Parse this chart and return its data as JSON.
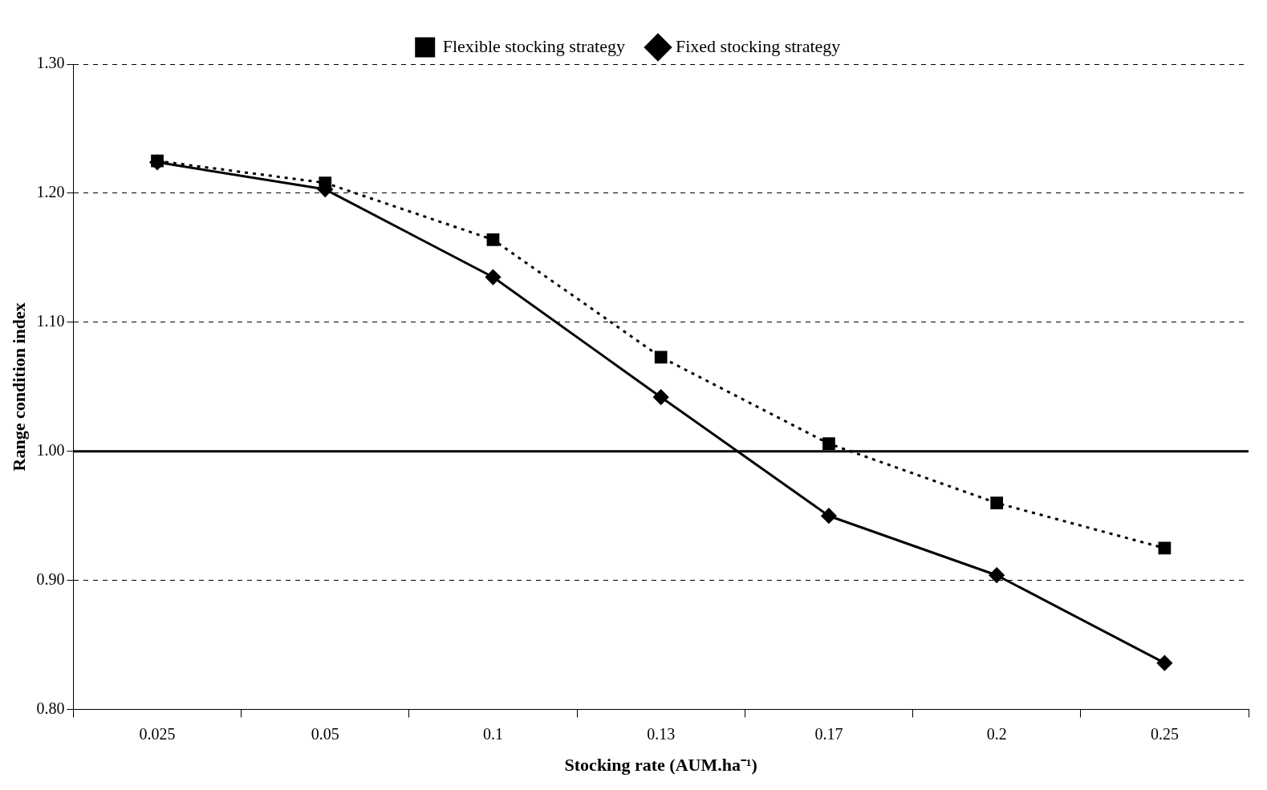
{
  "chart_data": {
    "type": "line",
    "xlabel": "Stocking rate (AUM.ha⁻¹)",
    "ylabel": "Range condition index",
    "categories": [
      "0.025",
      "0.05",
      "0.1",
      "0.13",
      "0.17",
      "0.2",
      "0.25"
    ],
    "series": [
      {
        "name": "Fixed stocking strategy",
        "color": "#000000",
        "marker": "diamond",
        "line_style": "solid",
        "values": [
          1.224,
          1.203,
          1.135,
          1.042,
          0.95,
          0.904,
          0.836
        ]
      },
      {
        "name": "Flexible stocking strategy",
        "color": "#000000",
        "marker": "square",
        "line_style": "dotted",
        "values": [
          1.225,
          1.208,
          1.164,
          1.073,
          1.006,
          0.96,
          0.925
        ]
      }
    ],
    "ylim": [
      0.8,
      1.3
    ],
    "yticks": [
      {
        "value": 0.8,
        "label": "0.80"
      },
      {
        "value": 0.9,
        "label": "0.90"
      },
      {
        "value": 1.0,
        "label": "1.00"
      },
      {
        "value": 1.1,
        "label": "1.10"
      },
      {
        "value": 1.2,
        "label": "1.20"
      },
      {
        "value": 1.3,
        "label": "1.30"
      }
    ],
    "grid": "y",
    "legend": "top",
    "ref_lines": [
      {
        "axis": "y",
        "value": 1.0,
        "color": "#000000",
        "line_style": "solid"
      }
    ]
  }
}
